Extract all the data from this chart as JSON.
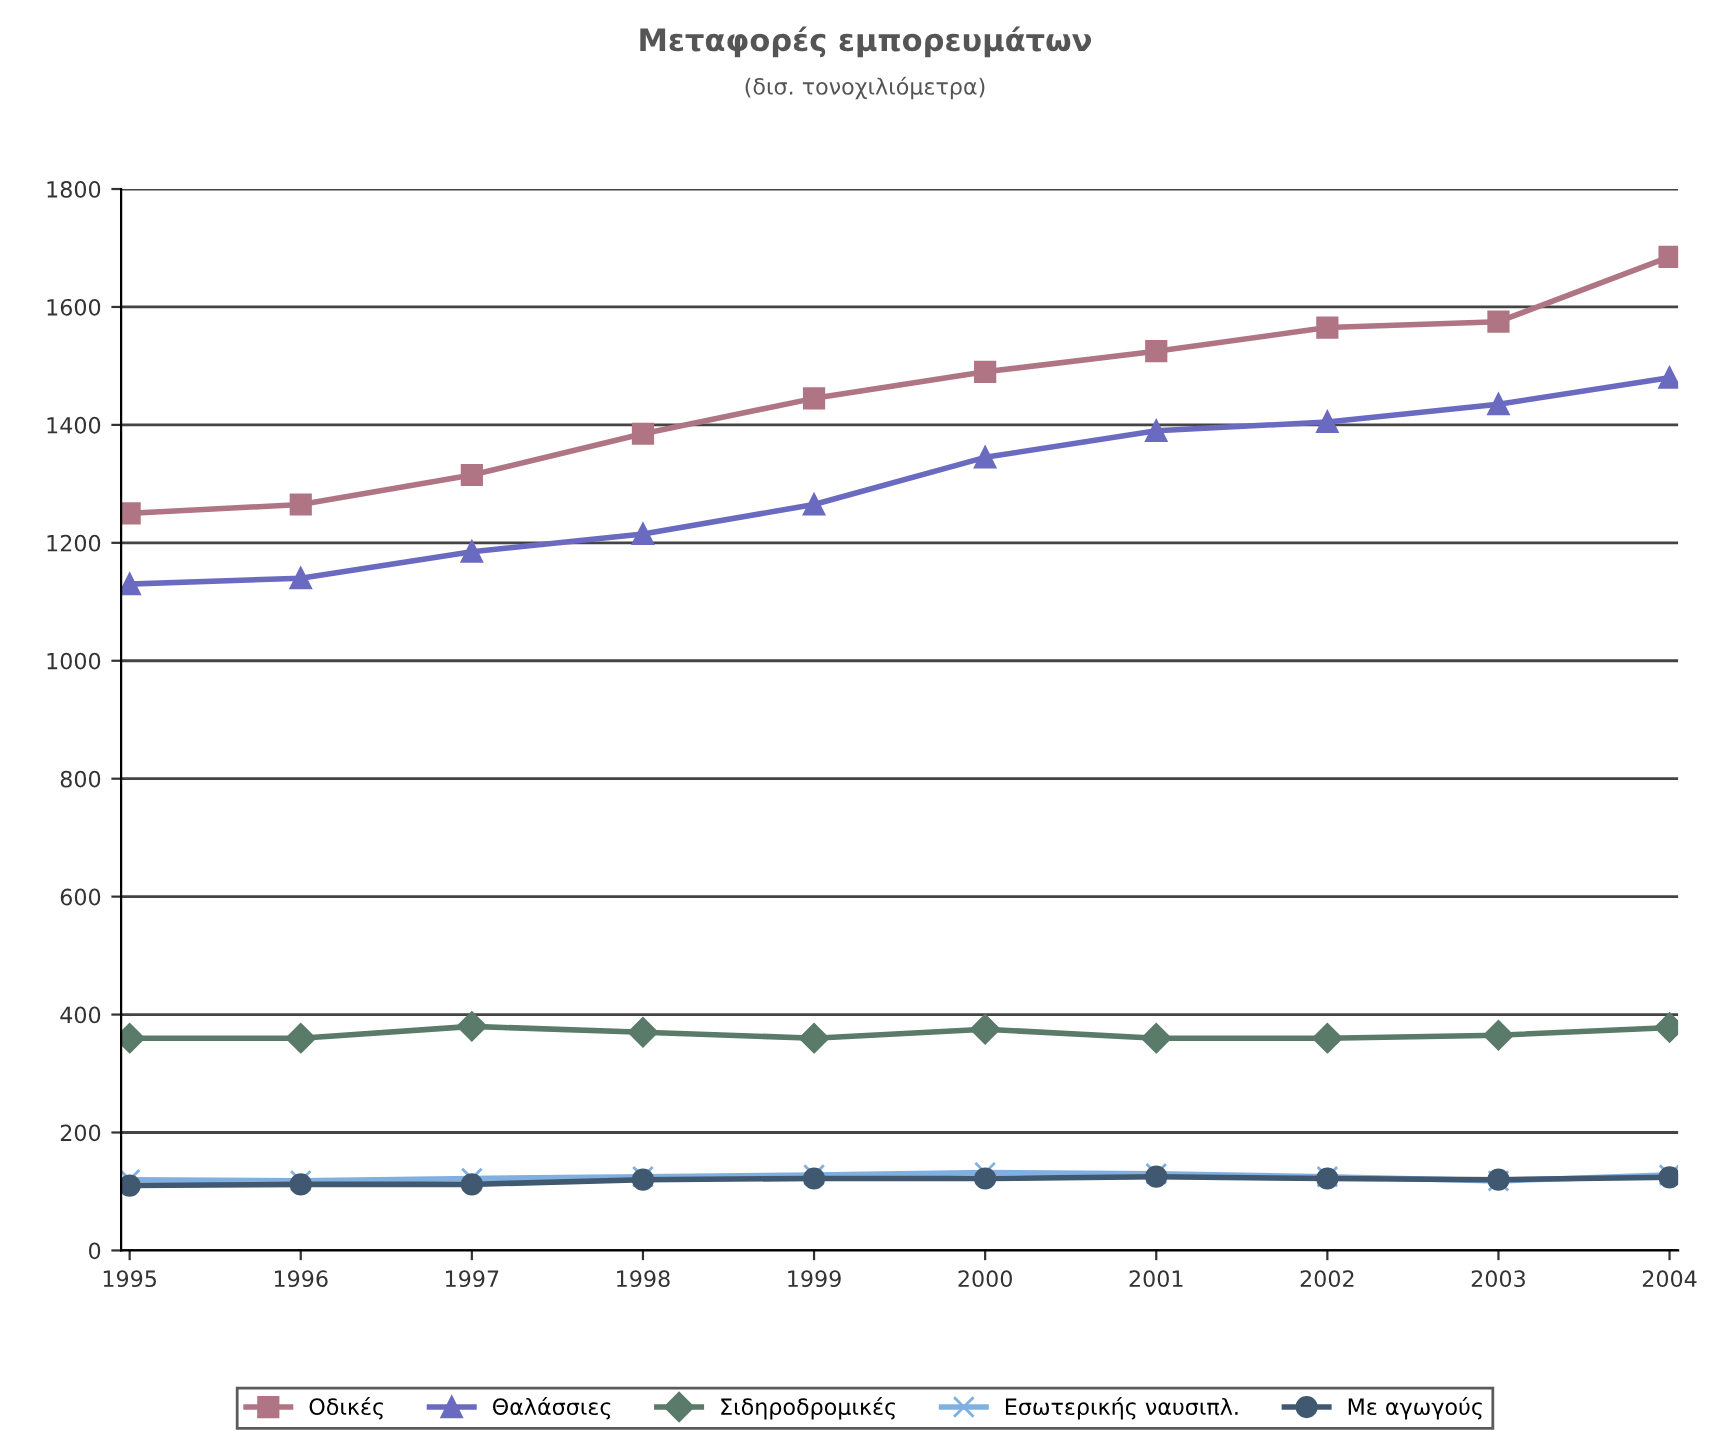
{
  "chart_data": {
    "type": "line",
    "title": "Μεταφορές εμπορευμάτων",
    "subtitle": "(δισ. τονοχιλιόμετρα)",
    "categories": [
      "1995",
      "1996",
      "1997",
      "1998",
      "1999",
      "2000",
      "2001",
      "2002",
      "2003",
      "2004"
    ],
    "ylim": [
      0,
      1800
    ],
    "yticks": [
      0,
      200,
      400,
      600,
      800,
      1000,
      1200,
      1400,
      1600,
      1800
    ],
    "grid": "y",
    "legend": "bottom",
    "series": [
      {
        "name": "Οδικές",
        "color": "#b07585",
        "marker": "square",
        "values": [
          1250,
          1265,
          1315,
          1385,
          1445,
          1490,
          1525,
          1565,
          1575,
          1685
        ]
      },
      {
        "name": "Θαλάσσιες",
        "color": "#6a6ac0",
        "marker": "triangle",
        "values": [
          1130,
          1140,
          1185,
          1215,
          1265,
          1345,
          1390,
          1405,
          1435,
          1480
        ]
      },
      {
        "name": "Σιδηροδρομικές",
        "color": "#5a7a6a",
        "marker": "diamond",
        "values": [
          360,
          360,
          380,
          370,
          360,
          375,
          360,
          360,
          365,
          378
        ]
      },
      {
        "name": "Εσωτερικής ναυσιπλ.",
        "color": "#80b0e0",
        "marker": "cross",
        "values": [
          120,
          118,
          122,
          125,
          128,
          132,
          130,
          125,
          118,
          128
        ]
      },
      {
        "name": "Με αγωγούς",
        "color": "#405870",
        "marker": "circle",
        "values": [
          110,
          112,
          112,
          120,
          122,
          122,
          125,
          122,
          120,
          124
        ]
      }
    ]
  }
}
